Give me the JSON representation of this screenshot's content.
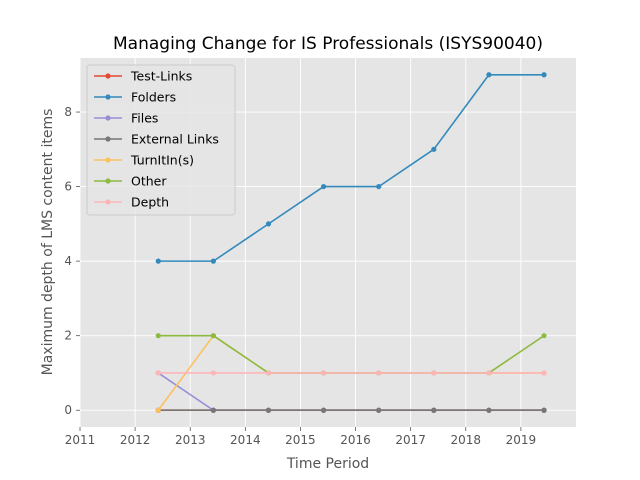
{
  "chart_data": {
    "type": "line",
    "title": "Managing Change for IS Professionals (ISYS90040)",
    "xlabel": "Time Period",
    "ylabel": "Maximum depth of LMS content items",
    "xlim": [
      2011.0,
      2020.0
    ],
    "ylim": [
      -0.45,
      9.45
    ],
    "x_ticks": [
      2011,
      2012,
      2013,
      2014,
      2015,
      2016,
      2017,
      2018,
      2019
    ],
    "y_ticks": [
      0,
      2,
      4,
      6,
      8
    ],
    "grid": true,
    "legend_position": "upper-left",
    "x": [
      2012.42,
      2013.42,
      2014.42,
      2015.42,
      2016.42,
      2017.42,
      2018.42,
      2019.42
    ],
    "series": [
      {
        "name": "Test-Links",
        "color": "#E24A33",
        "values": [
          0,
          0,
          0,
          0,
          0,
          0,
          0,
          0
        ]
      },
      {
        "name": "Folders",
        "color": "#348ABD",
        "values": [
          4,
          4,
          5,
          6,
          6,
          7,
          9,
          9
        ]
      },
      {
        "name": "Files",
        "color": "#988ED5",
        "values": [
          1,
          0,
          0,
          0,
          0,
          0,
          0,
          0
        ]
      },
      {
        "name": "External Links",
        "color": "#777777",
        "values": [
          0,
          0,
          0,
          0,
          0,
          0,
          0,
          0
        ]
      },
      {
        "name": "TurnItIn(s)",
        "color": "#FBC15E",
        "values": [
          0,
          2,
          1,
          1,
          1,
          1,
          1,
          1
        ]
      },
      {
        "name": "Other",
        "color": "#8EBA42",
        "values": [
          2,
          2,
          1,
          1,
          1,
          1,
          1,
          2
        ]
      },
      {
        "name": "Depth",
        "color": "#FFB5B8",
        "values": [
          1,
          1,
          1,
          1,
          1,
          1,
          1,
          1
        ]
      }
    ]
  }
}
